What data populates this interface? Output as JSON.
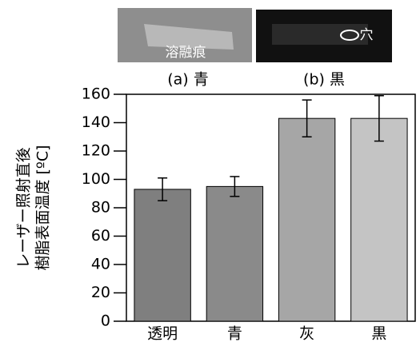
{
  "photos": [
    {
      "label": "溶融痕",
      "caption": "(a) 青"
    },
    {
      "label": "穴",
      "caption": "(b) 黒"
    }
  ],
  "chart_data": {
    "type": "bar",
    "ylabel": [
      "レーザー照射直後",
      "樹脂表面温度 [ºC]"
    ],
    "categories": [
      "透明",
      "青",
      "灰",
      "黒"
    ],
    "values": [
      93,
      95,
      143,
      143
    ],
    "errors": [
      8,
      7,
      13,
      16
    ],
    "colors": [
      "#7f7f7f",
      "#8a8a8a",
      "#a6a6a6",
      "#c4c4c4"
    ],
    "ylim": [
      0,
      160
    ],
    "yticks": [
      0,
      20,
      40,
      60,
      80,
      100,
      120,
      140,
      160
    ]
  }
}
